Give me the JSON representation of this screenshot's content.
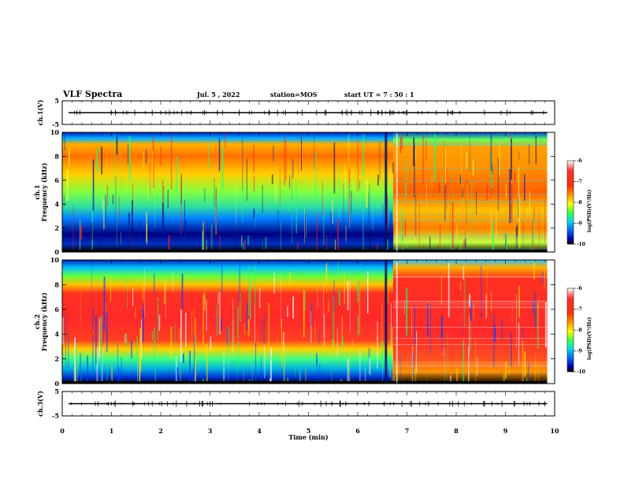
{
  "header": {
    "title": "VLF Spectra",
    "date": "Jul. 5 , 2022",
    "station": "station=MOS",
    "start": "start UT = 7 : 50 : 1"
  },
  "chart_data": [
    {
      "type": "line",
      "panel": "ch.1 waveform",
      "ylabel": "ch.1(V)",
      "ylim": [
        -5,
        5
      ],
      "yticks": [
        "5",
        "-5"
      ],
      "xlim": [
        0,
        10
      ],
      "series": [
        {
          "values_description": "flat trace near 0 V",
          "x": [
            0,
            9.85
          ],
          "y": [
            0,
            0
          ]
        }
      ]
    },
    {
      "type": "heatmap",
      "panel": "ch.1 spectrogram",
      "ylabel": "ch.1 Frequency (kHz)",
      "ylim": [
        0,
        10
      ],
      "yticks": [
        "0",
        "2",
        "4",
        "6",
        "8",
        "10"
      ],
      "xlim": [
        0,
        10
      ],
      "data_end_min": 9.85,
      "colorbar": {
        "label": "log(PSD)(V²/Hz)",
        "range": [
          -10,
          -6
        ],
        "ticks": [
          "-6",
          "-7",
          "-8",
          "-9",
          "-10"
        ]
      }
    },
    {
      "type": "heatmap",
      "panel": "ch.2 spectrogram",
      "ylabel": "ch.2 Frequency (kHz)",
      "ylim": [
        0,
        10
      ],
      "yticks": [
        "0",
        "2",
        "4",
        "6",
        "8",
        "10"
      ],
      "xlim": [
        0,
        10
      ],
      "data_end_min": 9.85,
      "colorbar": {
        "label": "log(PSD)(V²/Hz)",
        "range": [
          -10,
          -6
        ],
        "ticks": [
          "-6",
          "-7",
          "-8",
          "-9",
          "-10"
        ]
      }
    },
    {
      "type": "line",
      "panel": "ch.3 waveform",
      "ylabel": "ch.3(V)",
      "ylim": [
        -5,
        5
      ],
      "yticks": [
        "5",
        "-5"
      ],
      "xlim": [
        0,
        10
      ],
      "series": [
        {
          "values_description": "flat trace near 0 V",
          "x": [
            0,
            9.85
          ],
          "y": [
            0,
            0
          ]
        }
      ]
    }
  ],
  "xaxis": {
    "label": "Time (min)",
    "ticks": [
      "0",
      "1",
      "2",
      "3",
      "4",
      "5",
      "6",
      "7",
      "8",
      "9",
      "10"
    ]
  }
}
